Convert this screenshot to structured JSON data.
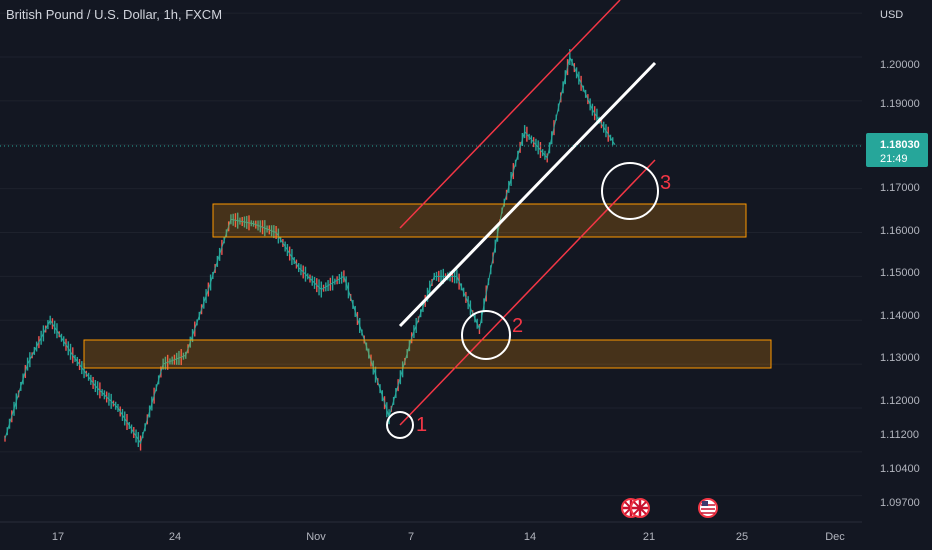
{
  "header": {
    "title": "British Pound / U.S. Dollar, 1h, FXCM"
  },
  "price_axis": {
    "currency": "USD",
    "ticks": [
      "1.20000",
      "1.19000",
      "1.17000",
      "1.16000",
      "1.15000",
      "1.14000",
      "1.13000",
      "1.12000",
      "1.11200",
      "1.10400",
      "1.09700"
    ],
    "current_price": "1.18030",
    "countdown": "21:49",
    "current_color": "#26a69a"
  },
  "time_axis": {
    "ticks": [
      "17",
      "24",
      "Nov",
      "7",
      "14",
      "21",
      "25",
      "Dec"
    ]
  },
  "annotations": {
    "labels": [
      "1",
      "2",
      "3"
    ],
    "zone_color": "#ff9800",
    "channel_color": "#f23645",
    "trendline_color": "#ffffff"
  },
  "events": [
    {
      "icon": "uk-flag-icon"
    },
    {
      "icon": "uk-flag-icon"
    },
    {
      "icon": "us-flag-icon"
    }
  ],
  "chart_data": {
    "type": "line",
    "symbol": "GBPUSD",
    "timeframe": "1h",
    "ylim": [
      1.094,
      1.213
    ],
    "x_ticks": [
      "17",
      "24",
      "Nov",
      "7",
      "14",
      "21",
      "25",
      "Dec"
    ],
    "series": [
      {
        "x": [
          "Oct 12",
          "Oct 14",
          "Oct 15",
          "Oct 17",
          "Oct 18",
          "Oct 19",
          "Oct 20",
          "Oct 21",
          "Oct 24",
          "Oct 25",
          "Oct 26",
          "Oct 27",
          "Oct 28",
          "Oct 31",
          "Nov 1",
          "Nov 2",
          "Nov 3",
          "Nov 4",
          "Nov 7",
          "Nov 8",
          "Nov 9",
          "Nov 10",
          "Nov 11",
          "Nov 14",
          "Nov 15",
          "Nov 16",
          "Nov 17",
          "Nov 18"
        ],
        "values": [
          1.113,
          1.13,
          1.14,
          1.132,
          1.125,
          1.12,
          1.112,
          1.13,
          1.132,
          1.147,
          1.163,
          1.162,
          1.16,
          1.152,
          1.147,
          1.15,
          1.134,
          1.118,
          1.136,
          1.15,
          1.15,
          1.138,
          1.165,
          1.183,
          1.177,
          1.2,
          1.188,
          1.18
        ]
      }
    ]
  }
}
